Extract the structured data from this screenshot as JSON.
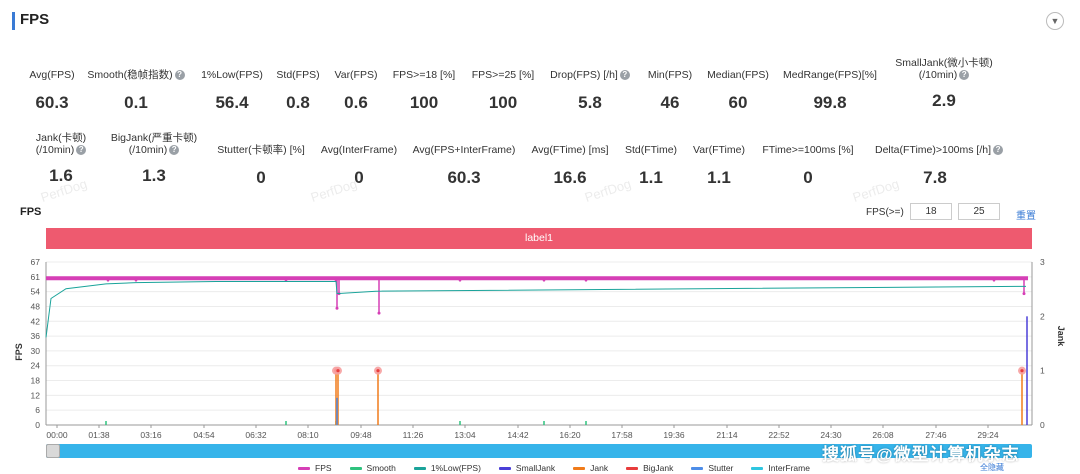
{
  "header": {
    "title": "FPS",
    "collapse_icon": "chevron-down-icon"
  },
  "metrics_row1": [
    {
      "label": "Avg(FPS)",
      "value": "60.3",
      "help": false
    },
    {
      "label": "Smooth(稳帧指数)",
      "value": "0.1",
      "help": true
    },
    {
      "label": "1%Low(FPS)",
      "value": "56.4",
      "help": false
    },
    {
      "label": "Std(FPS)",
      "value": "0.8",
      "help": false
    },
    {
      "label": "Var(FPS)",
      "value": "0.6",
      "help": false
    },
    {
      "label": "FPS>=18 [%]",
      "value": "100",
      "help": false
    },
    {
      "label": "FPS>=25 [%]",
      "value": "100",
      "help": false
    },
    {
      "label": "Drop(FPS) [/h]",
      "value": "5.8",
      "help": true
    },
    {
      "label": "Min(FPS)",
      "value": "46",
      "help": false
    },
    {
      "label": "Median(FPS)",
      "value": "60",
      "help": false
    },
    {
      "label": "MedRange(FPS)[%]",
      "value": "99.8",
      "help": false
    },
    {
      "label": "SmallJank(微小卡顿)",
      "label2": "(/10min)",
      "value": "2.9",
      "help": true
    }
  ],
  "metrics_row2": [
    {
      "label": "Jank(卡顿)",
      "label2": "(/10min)",
      "value": "1.6",
      "help": true
    },
    {
      "label": "BigJank(严重卡顿)",
      "label2": "(/10min)",
      "value": "1.3",
      "help": true
    },
    {
      "label": "Stutter(卡顿率) [%]",
      "value": "0",
      "help": false
    },
    {
      "label": "Avg(InterFrame)",
      "value": "0",
      "help": false
    },
    {
      "label": "Avg(FPS+InterFrame)",
      "value": "60.3",
      "help": false
    },
    {
      "label": "Avg(FTime) [ms]",
      "value": "16.6",
      "help": false
    },
    {
      "label": "Std(FTime)",
      "value": "1.1",
      "help": false
    },
    {
      "label": "Var(FTime)",
      "value": "1.1",
      "help": false
    },
    {
      "label": "FTime>=100ms [%]",
      "value": "0",
      "help": false
    },
    {
      "label": "Delta(FTime)>100ms [/h]",
      "value": "7.8",
      "help": true
    }
  ],
  "watermark": "PerfDog",
  "chart_header": {
    "title": "FPS",
    "threshold_label": "FPS(>=)",
    "threshold_1": "18",
    "threshold_2": "25",
    "reset_label": "重置"
  },
  "label_band": "label1",
  "chart_data": {
    "type": "line",
    "ylabel_left": "FPS",
    "ylabel_right": "Jank",
    "y_ticks_left": [
      "0",
      "6",
      "12",
      "18",
      "24",
      "30",
      "36",
      "42",
      "48",
      "54",
      "61",
      "67"
    ],
    "y_ticks_right": [
      "0",
      "1",
      "2",
      "3"
    ],
    "x_ticks": [
      "00:00",
      "01:38",
      "03:16",
      "04:54",
      "06:32",
      "08:10",
      "09:48",
      "11:26",
      "13:04",
      "14:42",
      "16:20",
      "17:58",
      "19:36",
      "21:14",
      "22:52",
      "24:30",
      "26:08",
      "27:46",
      "29:24"
    ],
    "ylim_left": [
      0,
      67
    ],
    "ylim_right": [
      0,
      3
    ],
    "series": [
      {
        "name": "FPS",
        "color": "#d63fb6",
        "description": "steady ~60 with dips to 48 and 46"
      },
      {
        "name": "Smooth",
        "color": "#2ec27e"
      },
      {
        "name": "1%Low(FPS)",
        "color": "#1aa39a",
        "points": [
          [
            0,
            36
          ],
          [
            5,
            52
          ],
          [
            20,
            56
          ],
          [
            60,
            58
          ],
          [
            90,
            58.5
          ],
          [
            170,
            59
          ],
          [
            290,
            59
          ],
          [
            291,
            54
          ],
          [
            330,
            55
          ],
          [
            980,
            57
          ]
        ]
      },
      {
        "name": "SmallJank",
        "color": "#4a3fd8"
      },
      {
        "name": "Jank",
        "color": "#f07b1a"
      },
      {
        "name": "BigJank",
        "color": "#e83c3c",
        "markers": [
          [
            290,
            1
          ],
          [
            292,
            1
          ],
          [
            332,
            1
          ],
          [
            976,
            1
          ]
        ]
      },
      {
        "name": "Stutter",
        "color": "#4d8de8"
      },
      {
        "name": "InterFrame",
        "color": "#2ec6e0"
      }
    ]
  },
  "legend": [
    "FPS",
    "Smooth",
    "1%Low(FPS)",
    "SmallJank",
    "Jank",
    "BigJank",
    "Stutter",
    "InterFrame"
  ],
  "legend_colors": [
    "#d63fb6",
    "#2ec27e",
    "#1aa39a",
    "#4a3fd8",
    "#f07b1a",
    "#e83c3c",
    "#4d8de8",
    "#2ec6e0"
  ],
  "hide_all": "全隐藏",
  "credit": "搜狐号@微型计算机杂志"
}
